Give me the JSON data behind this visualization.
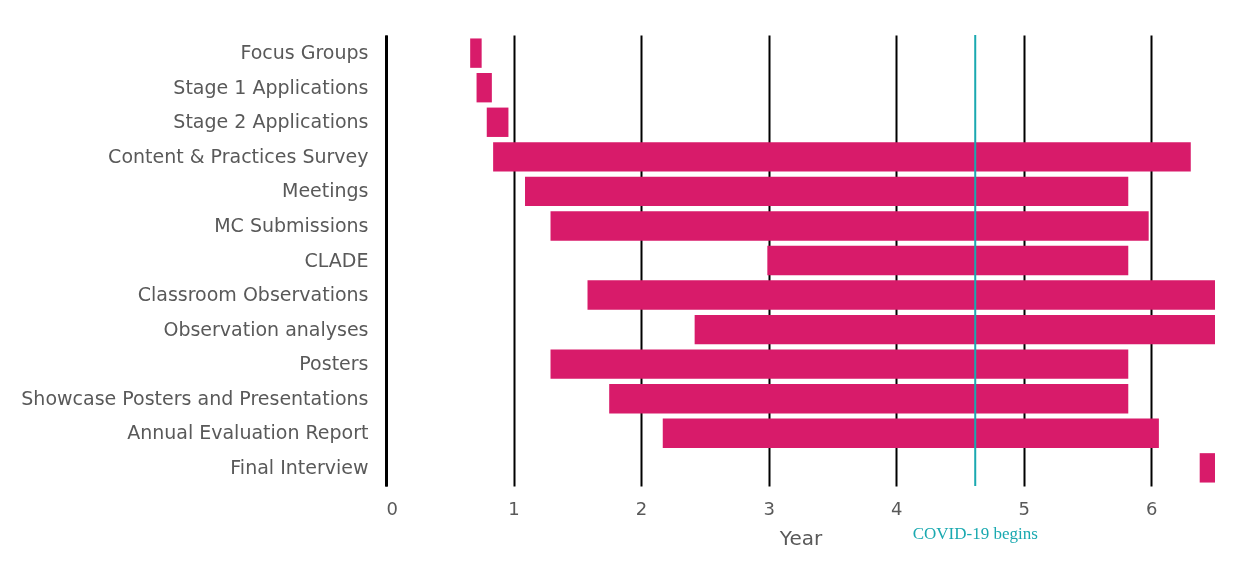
{
  "chart_data": {
    "type": "bar",
    "orientation": "horizontal",
    "xlabel": "Year",
    "categories": [
      "Focus Groups",
      "Stage 1 Applications",
      "Stage 2 Applications",
      "Content & Practices Survey",
      "Meetings",
      "MC Submissions",
      "CLADE",
      "Classroom Observations",
      "Observation analyses",
      "Posters",
      "Showcase Posters and Presentations",
      "Annual Evaluation Report",
      "Final Interview"
    ],
    "base": [
      0.66,
      0.71,
      0.79,
      0.84,
      1.09,
      1.29,
      2.99,
      1.58,
      2.42,
      1.29,
      1.75,
      2.17,
      6.38
    ],
    "values": [
      0.09,
      0.12,
      0.17,
      5.47,
      4.73,
      4.69,
      2.83,
      4.92,
      4.08,
      4.53,
      4.07,
      3.89,
      0.12
    ],
    "color": "#d81b6a",
    "xlim": [
      0,
      6.5
    ],
    "xticks": [
      0,
      1,
      2,
      3,
      4,
      5,
      6
    ],
    "grid": "x",
    "ref_lines": [
      {
        "axis": "x",
        "value": 4.62,
        "label": "COVID-19 begins",
        "color": "#1aa9b0"
      }
    ]
  }
}
